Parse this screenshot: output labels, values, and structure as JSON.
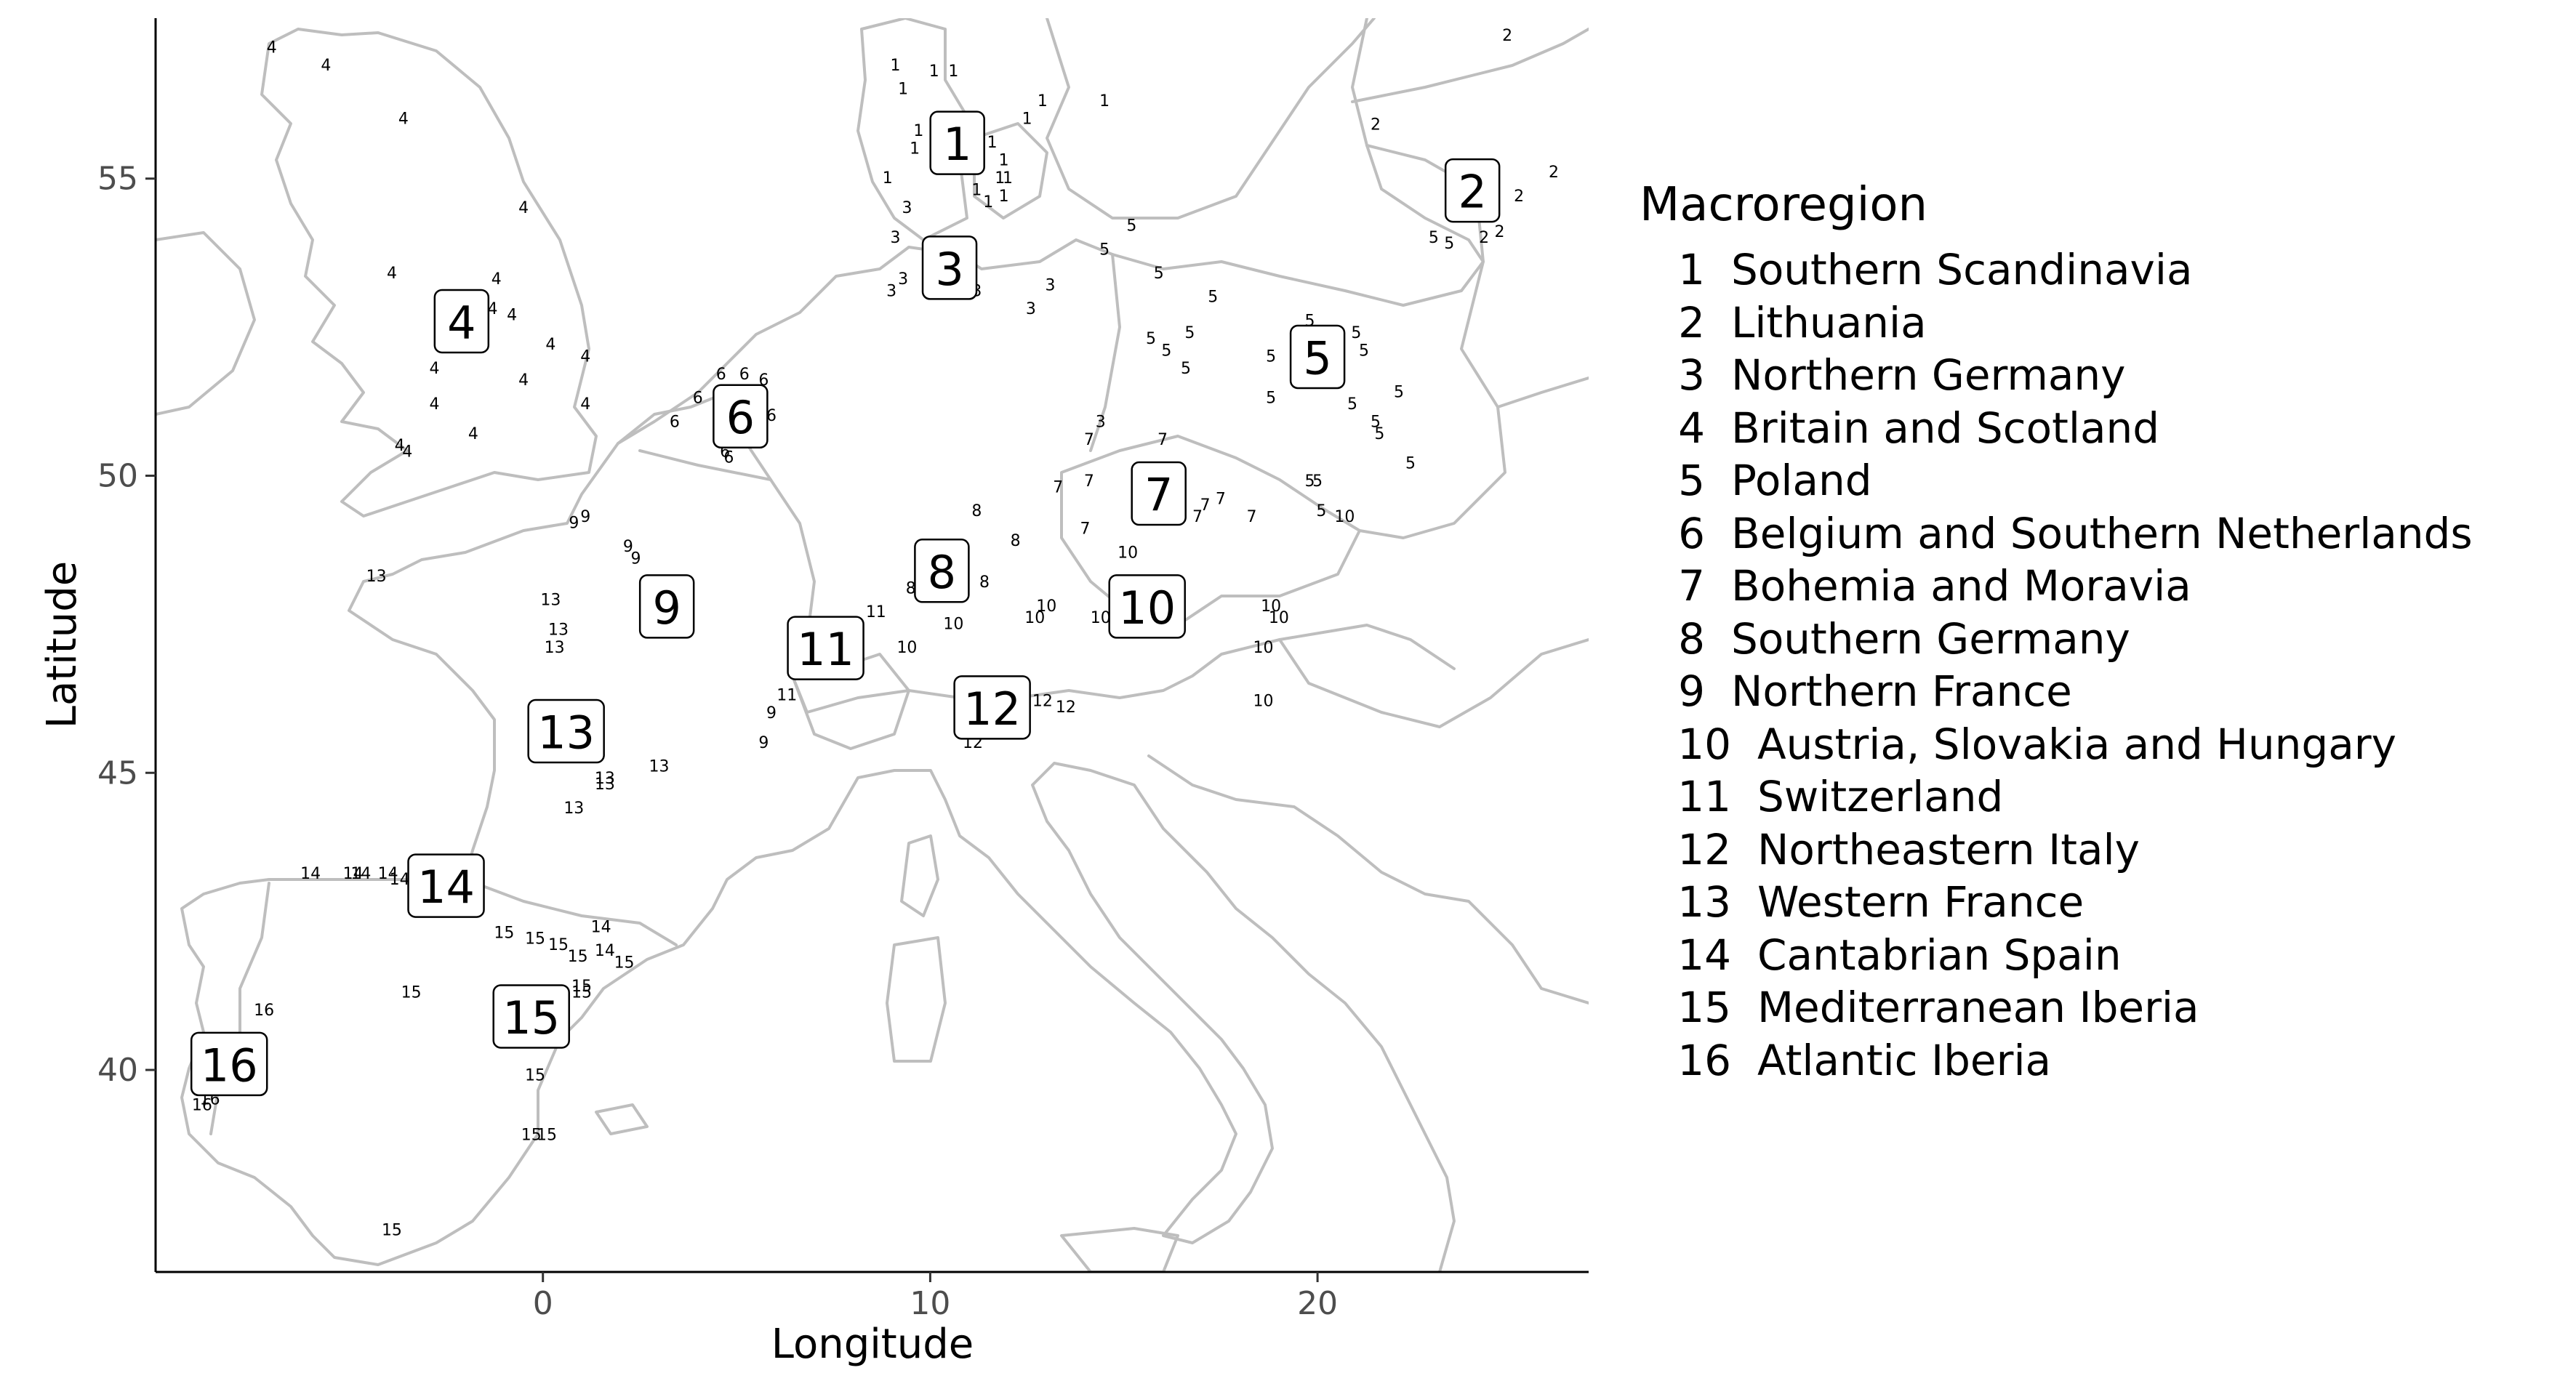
{
  "chart_data": {
    "type": "map",
    "xlabel": "Longitude",
    "ylabel": "Latitude",
    "xlim": [
      -10,
      27
    ],
    "ylim": [
      36.6,
      57.7
    ],
    "x_ticks": [
      0,
      10,
      20
    ],
    "y_ticks": [
      40,
      45,
      50,
      55
    ],
    "grid": false,
    "legend_title": "Macroregion",
    "legend_placement": "right",
    "regions": [
      {
        "id": "1",
        "name": "Southern Scandinavia",
        "lon": 10.7,
        "lat": 55.6
      },
      {
        "id": "2",
        "name": "Lithuania",
        "lon": 24.0,
        "lat": 54.8
      },
      {
        "id": "3",
        "name": "Northern Germany",
        "lon": 10.5,
        "lat": 53.5
      },
      {
        "id": "4",
        "name": "Britain and Scotland",
        "lon": -2.1,
        "lat": 52.6
      },
      {
        "id": "5",
        "name": "Poland",
        "lon": 20.0,
        "lat": 52.0
      },
      {
        "id": "6",
        "name": "Belgium and Southern Netherlands",
        "lon": 5.1,
        "lat": 51.0
      },
      {
        "id": "7",
        "name": "Bohemia and Moravia",
        "lon": 15.9,
        "lat": 49.7
      },
      {
        "id": "8",
        "name": "Southern Germany",
        "lon": 10.3,
        "lat": 48.4
      },
      {
        "id": "9",
        "name": "Northern France",
        "lon": 3.2,
        "lat": 47.8
      },
      {
        "id": "10",
        "name": "Austria, Slovakia and Hungary",
        "lon": 15.6,
        "lat": 47.8
      },
      {
        "id": "11",
        "name": "Switzerland",
        "lon": 7.3,
        "lat": 47.1
      },
      {
        "id": "12",
        "name": "Northeastern Italy",
        "lon": 11.6,
        "lat": 46.1
      },
      {
        "id": "13",
        "name": "Western France",
        "lon": 0.6,
        "lat": 45.7
      },
      {
        "id": "14",
        "name": "Cantabrian Spain",
        "lon": -2.5,
        "lat": 43.1
      },
      {
        "id": "15",
        "name": "Mediterranean Iberia",
        "lon": -0.3,
        "lat": 40.9
      },
      {
        "id": "16",
        "name": "Atlantic Iberia",
        "lon": -8.1,
        "lat": 40.1
      }
    ],
    "sites": [
      {
        "label": "1",
        "lon": 9.1,
        "lat": 56.9
      },
      {
        "label": "1",
        "lon": 10.1,
        "lat": 56.8
      },
      {
        "label": "1",
        "lon": 10.6,
        "lat": 56.8
      },
      {
        "label": "1",
        "lon": 9.3,
        "lat": 56.5
      },
      {
        "label": "1",
        "lon": 12.9,
        "lat": 56.3
      },
      {
        "label": "1",
        "lon": 14.5,
        "lat": 56.3
      },
      {
        "label": "1",
        "lon": 12.5,
        "lat": 56.0
      },
      {
        "label": "1",
        "lon": 9.7,
        "lat": 55.8
      },
      {
        "label": "1",
        "lon": 9.6,
        "lat": 55.5
      },
      {
        "label": "1",
        "lon": 11.6,
        "lat": 55.6
      },
      {
        "label": "1",
        "lon": 11.9,
        "lat": 55.3
      },
      {
        "label": "1",
        "lon": 11.8,
        "lat": 55.0
      },
      {
        "label": "1",
        "lon": 12.0,
        "lat": 55.0
      },
      {
        "label": "1",
        "lon": 11.2,
        "lat": 54.8
      },
      {
        "label": "1",
        "lon": 11.5,
        "lat": 54.6
      },
      {
        "label": "1",
        "lon": 11.9,
        "lat": 54.7
      },
      {
        "label": "1",
        "lon": 8.9,
        "lat": 55.0
      },
      {
        "label": "2",
        "lon": 24.9,
        "lat": 57.4
      },
      {
        "label": "2",
        "lon": 21.5,
        "lat": 55.9
      },
      {
        "label": "2",
        "lon": 23.7,
        "lat": 55.0
      },
      {
        "label": "2",
        "lon": 25.2,
        "lat": 54.7
      },
      {
        "label": "2",
        "lon": 26.1,
        "lat": 55.1
      },
      {
        "label": "2",
        "lon": 24.3,
        "lat": 54.0
      },
      {
        "label": "2",
        "lon": 24.7,
        "lat": 54.1
      },
      {
        "label": "3",
        "lon": 9.4,
        "lat": 54.5
      },
      {
        "label": "3",
        "lon": 9.1,
        "lat": 54.0
      },
      {
        "label": "3",
        "lon": 10.2,
        "lat": 53.8
      },
      {
        "label": "3",
        "lon": 9.3,
        "lat": 53.3
      },
      {
        "label": "3",
        "lon": 9.0,
        "lat": 53.1
      },
      {
        "label": "3",
        "lon": 11.2,
        "lat": 53.1
      },
      {
        "label": "3",
        "lon": 13.1,
        "lat": 53.2
      },
      {
        "label": "3",
        "lon": 12.6,
        "lat": 52.8
      },
      {
        "label": "3",
        "lon": 14.4,
        "lat": 50.9
      },
      {
        "label": "4",
        "lon": -7.0,
        "lat": 57.2
      },
      {
        "label": "4",
        "lon": -5.6,
        "lat": 56.9
      },
      {
        "label": "4",
        "lon": -3.6,
        "lat": 56.0
      },
      {
        "label": "4",
        "lon": -0.5,
        "lat": 54.5
      },
      {
        "label": "4",
        "lon": -3.9,
        "lat": 53.4
      },
      {
        "label": "4",
        "lon": -1.2,
        "lat": 53.3
      },
      {
        "label": "4",
        "lon": -1.3,
        "lat": 52.8
      },
      {
        "label": "4",
        "lon": -0.8,
        "lat": 52.7
      },
      {
        "label": "4",
        "lon": -2.8,
        "lat": 51.8
      },
      {
        "label": "4",
        "lon": 0.2,
        "lat": 52.2
      },
      {
        "label": "4",
        "lon": 1.1,
        "lat": 52.0
      },
      {
        "label": "4",
        "lon": -0.5,
        "lat": 51.6
      },
      {
        "label": "4",
        "lon": -2.8,
        "lat": 51.2
      },
      {
        "label": "4",
        "lon": 1.1,
        "lat": 51.2
      },
      {
        "label": "4",
        "lon": -1.8,
        "lat": 50.7
      },
      {
        "label": "4",
        "lon": -3.7,
        "lat": 50.5
      },
      {
        "label": "4",
        "lon": -3.5,
        "lat": 50.4
      },
      {
        "label": "5",
        "lon": 15.2,
        "lat": 54.2
      },
      {
        "label": "5",
        "lon": 14.5,
        "lat": 53.8
      },
      {
        "label": "5",
        "lon": 15.9,
        "lat": 53.4
      },
      {
        "label": "5",
        "lon": 17.3,
        "lat": 53.0
      },
      {
        "label": "5",
        "lon": 15.7,
        "lat": 52.3
      },
      {
        "label": "5",
        "lon": 16.1,
        "lat": 52.1
      },
      {
        "label": "5",
        "lon": 16.7,
        "lat": 52.4
      },
      {
        "label": "5",
        "lon": 16.6,
        "lat": 51.8
      },
      {
        "label": "5",
        "lon": 18.8,
        "lat": 52.0
      },
      {
        "label": "5",
        "lon": 19.8,
        "lat": 52.6
      },
      {
        "label": "5",
        "lon": 21.0,
        "lat": 52.4
      },
      {
        "label": "5",
        "lon": 21.2,
        "lat": 52.1
      },
      {
        "label": "5",
        "lon": 22.1,
        "lat": 51.4
      },
      {
        "label": "5",
        "lon": 18.8,
        "lat": 51.3
      },
      {
        "label": "5",
        "lon": 20.9,
        "lat": 51.2
      },
      {
        "label": "5",
        "lon": 21.5,
        "lat": 50.9
      },
      {
        "label": "5",
        "lon": 21.6,
        "lat": 50.7
      },
      {
        "label": "5",
        "lon": 22.4,
        "lat": 50.2
      },
      {
        "label": "5",
        "lon": 19.8,
        "lat": 49.9
      },
      {
        "label": "5",
        "lon": 20.0,
        "lat": 49.9
      },
      {
        "label": "5",
        "lon": 20.1,
        "lat": 49.4
      },
      {
        "label": "5",
        "lon": 23.0,
        "lat": 54.0
      },
      {
        "label": "5",
        "lon": 23.4,
        "lat": 53.9
      },
      {
        "label": "6",
        "lon": 4.6,
        "lat": 51.7
      },
      {
        "label": "6",
        "lon": 5.2,
        "lat": 51.7
      },
      {
        "label": "6",
        "lon": 5.7,
        "lat": 51.6
      },
      {
        "label": "6",
        "lon": 4.0,
        "lat": 51.3
      },
      {
        "label": "6",
        "lon": 3.4,
        "lat": 50.9
      },
      {
        "label": "6",
        "lon": 5.9,
        "lat": 51.0
      },
      {
        "label": "6",
        "lon": 5.7,
        "lat": 50.6
      },
      {
        "label": "6",
        "lon": 4.7,
        "lat": 50.4
      },
      {
        "label": "6",
        "lon": 4.8,
        "lat": 50.3
      },
      {
        "label": "7",
        "lon": 14.1,
        "lat": 50.6
      },
      {
        "label": "7",
        "lon": 16.0,
        "lat": 50.6
      },
      {
        "label": "7",
        "lon": 13.3,
        "lat": 49.8
      },
      {
        "label": "7",
        "lon": 14.1,
        "lat": 49.9
      },
      {
        "label": "7",
        "lon": 17.1,
        "lat": 49.5
      },
      {
        "label": "7",
        "lon": 16.9,
        "lat": 49.3
      },
      {
        "label": "7",
        "lon": 17.5,
        "lat": 49.6
      },
      {
        "label": "7",
        "lon": 18.3,
        "lat": 49.3
      },
      {
        "label": "7",
        "lon": 14.0,
        "lat": 49.1
      },
      {
        "label": "8",
        "lon": 11.2,
        "lat": 49.4
      },
      {
        "label": "8",
        "lon": 12.2,
        "lat": 48.9
      },
      {
        "label": "8",
        "lon": 11.4,
        "lat": 48.2
      },
      {
        "label": "8",
        "lon": 9.5,
        "lat": 48.1
      },
      {
        "label": "8",
        "lon": 9.9,
        "lat": 48.0
      },
      {
        "label": "9",
        "lon": 0.8,
        "lat": 49.2
      },
      {
        "label": "9",
        "lon": 1.1,
        "lat": 49.3
      },
      {
        "label": "9",
        "lon": 2.2,
        "lat": 48.8
      },
      {
        "label": "9",
        "lon": 2.4,
        "lat": 48.6
      },
      {
        "label": "9",
        "lon": 5.9,
        "lat": 46.0
      },
      {
        "label": "9",
        "lon": 5.7,
        "lat": 45.5
      },
      {
        "label": "10",
        "lon": 15.1,
        "lat": 48.7
      },
      {
        "label": "10",
        "lon": 13.0,
        "lat": 47.8
      },
      {
        "label": "10",
        "lon": 12.7,
        "lat": 47.6
      },
      {
        "label": "10",
        "lon": 14.4,
        "lat": 47.6
      },
      {
        "label": "10",
        "lon": 10.6,
        "lat": 47.5
      },
      {
        "label": "10",
        "lon": 9.4,
        "lat": 47.1
      },
      {
        "label": "10",
        "lon": 18.8,
        "lat": 47.8
      },
      {
        "label": "10",
        "lon": 19.0,
        "lat": 47.6
      },
      {
        "label": "10",
        "lon": 18.6,
        "lat": 47.1
      },
      {
        "label": "10",
        "lon": 18.6,
        "lat": 46.2
      },
      {
        "label": "10",
        "lon": 20.7,
        "lat": 49.3
      },
      {
        "label": "11",
        "lon": 8.6,
        "lat": 47.7
      },
      {
        "label": "11",
        "lon": 6.3,
        "lat": 46.3
      },
      {
        "label": "12",
        "lon": 11.8,
        "lat": 46.5
      },
      {
        "label": "12",
        "lon": 12.9,
        "lat": 46.2
      },
      {
        "label": "12",
        "lon": 13.5,
        "lat": 46.1
      },
      {
        "label": "12",
        "lon": 11.1,
        "lat": 45.5
      },
      {
        "label": "13",
        "lon": -4.3,
        "lat": 48.3
      },
      {
        "label": "13",
        "lon": 0.2,
        "lat": 47.9
      },
      {
        "label": "13",
        "lon": 0.4,
        "lat": 47.4
      },
      {
        "label": "13",
        "lon": 0.3,
        "lat": 47.1
      },
      {
        "label": "13",
        "lon": 0.5,
        "lat": 45.4
      },
      {
        "label": "13",
        "lon": 3.0,
        "lat": 45.1
      },
      {
        "label": "13",
        "lon": 1.6,
        "lat": 44.9
      },
      {
        "label": "13",
        "lon": 1.6,
        "lat": 44.8
      },
      {
        "label": "13",
        "lon": 0.8,
        "lat": 44.4
      },
      {
        "label": "14",
        "lon": -6.0,
        "lat": 43.3
      },
      {
        "label": "14",
        "lon": -4.9,
        "lat": 43.3
      },
      {
        "label": "14",
        "lon": -4.7,
        "lat": 43.3
      },
      {
        "label": "14",
        "lon": -4.0,
        "lat": 43.3
      },
      {
        "label": "14",
        "lon": -3.7,
        "lat": 43.2
      },
      {
        "label": "14",
        "lon": 1.5,
        "lat": 42.4
      },
      {
        "label": "14",
        "lon": 1.6,
        "lat": 42.0
      },
      {
        "label": "15",
        "lon": -1.0,
        "lat": 42.3
      },
      {
        "label": "15",
        "lon": -0.2,
        "lat": 42.2
      },
      {
        "label": "15",
        "lon": 0.4,
        "lat": 42.1
      },
      {
        "label": "15",
        "lon": 0.9,
        "lat": 41.9
      },
      {
        "label": "15",
        "lon": 2.1,
        "lat": 41.8
      },
      {
        "label": "15",
        "lon": -3.4,
        "lat": 41.3
      },
      {
        "label": "15",
        "lon": 1.0,
        "lat": 41.4
      },
      {
        "label": "15",
        "lon": 1.0,
        "lat": 41.3
      },
      {
        "label": "15",
        "lon": -0.2,
        "lat": 39.9
      },
      {
        "label": "15",
        "lon": -0.3,
        "lat": 38.9
      },
      {
        "label": "15",
        "lon": 0.1,
        "lat": 38.9
      },
      {
        "label": "15",
        "lon": -3.9,
        "lat": 37.3
      },
      {
        "label": "16",
        "lon": -7.2,
        "lat": 41.0
      },
      {
        "label": "16",
        "lon": -8.8,
        "lat": 39.4
      },
      {
        "label": "16",
        "lon": -8.6,
        "lat": 39.5
      }
    ]
  }
}
